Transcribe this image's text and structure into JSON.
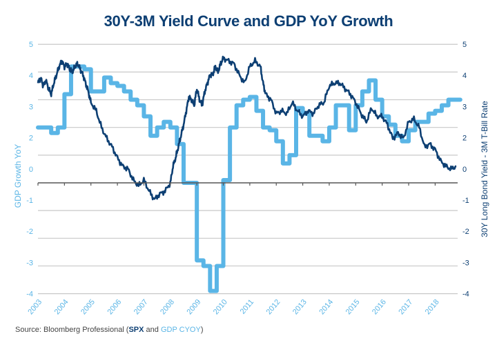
{
  "chart_data": {
    "type": "line",
    "title": "30Y-3M Yield Curve and GDP YoY Growth",
    "xlabel": "",
    "ylabel_left": "GDP Growth YoY",
    "ylabel_right": "30Y Long Bond Yield - 3M T-Bill Rate",
    "x_range": [
      2003,
      2018.85
    ],
    "y_range": [
      -4,
      5
    ],
    "grid": true,
    "legend": "none",
    "x_ticks": [
      "2003",
      "2004",
      "2005",
      "2006",
      "2007",
      "2008",
      "2009",
      "2010",
      "2011",
      "2012",
      "2013",
      "2014",
      "2015",
      "2016",
      "2017",
      "2018"
    ],
    "y_ticks_left": [
      "5",
      "4",
      "3",
      "2",
      "0",
      "-1",
      "-2",
      "-3",
      "-4"
    ],
    "y_ticks_right": [
      "5",
      "4",
      "3",
      "2",
      "0",
      "-1",
      "-2",
      "-3",
      "-4"
    ],
    "colors": {
      "gdp": "#5ab5e6",
      "yield": "#0d3f73",
      "grid": "#c8c8c8",
      "axis": "#555555"
    },
    "series": [
      {
        "name": "GDP Growth YoY",
        "axis": "left",
        "style": "step",
        "x": [
          2003.0,
          2003.5,
          2003.75,
          2004.0,
          2004.25,
          2004.5,
          2004.75,
          2005.0,
          2005.25,
          2005.5,
          2005.75,
          2006.0,
          2006.25,
          2006.5,
          2006.75,
          2007.0,
          2007.25,
          2007.5,
          2007.75,
          2008.0,
          2008.25,
          2008.5,
          2008.75,
          2009.0,
          2009.25,
          2009.5,
          2009.75,
          2010.0,
          2010.25,
          2010.5,
          2010.75,
          2011.0,
          2011.25,
          2011.5,
          2011.75,
          2012.0,
          2012.25,
          2012.5,
          2012.75,
          2013.0,
          2013.25,
          2013.5,
          2013.75,
          2014.0,
          2014.25,
          2014.5,
          2014.75,
          2015.0,
          2015.25,
          2015.5,
          2015.75,
          2016.0,
          2016.25,
          2016.5,
          2016.75,
          2017.0,
          2017.25,
          2017.5,
          2017.75,
          2018.0,
          2018.25,
          2018.5,
          2018.75
        ],
        "values": [
          2.0,
          1.8,
          2.0,
          3.2,
          4.2,
          4.2,
          4.1,
          3.3,
          3.3,
          3.8,
          3.6,
          3.5,
          3.3,
          3.0,
          2.8,
          2.4,
          1.7,
          2.0,
          2.2,
          2.0,
          1.4,
          0.0,
          0.0,
          -2.8,
          -3.0,
          -3.9,
          -3.0,
          0.1,
          2.0,
          2.8,
          3.0,
          3.1,
          2.6,
          2.0,
          1.9,
          1.5,
          0.7,
          1.0,
          2.7,
          2.5,
          1.7,
          1.7,
          1.5,
          2.0,
          2.8,
          2.8,
          1.9,
          2.8,
          3.3,
          3.7,
          3.0,
          2.4,
          2.1,
          1.7,
          1.5,
          1.9,
          2.2,
          2.2,
          2.5,
          2.6,
          2.8,
          3.0,
          3.0
        ]
      },
      {
        "name": "30Y Long Bond Yield - 3M T-Bill Rate",
        "axis": "right",
        "style": "line",
        "x": [
          2003.0,
          2003.1,
          2003.2,
          2003.3,
          2003.4,
          2003.5,
          2003.6,
          2003.7,
          2003.8,
          2003.9,
          2004.0,
          2004.1,
          2004.2,
          2004.3,
          2004.4,
          2004.5,
          2004.6,
          2004.7,
          2004.8,
          2004.9,
          2005.0,
          2005.2,
          2005.4,
          2005.6,
          2005.8,
          2006.0,
          2006.2,
          2006.4,
          2006.6,
          2006.8,
          2007.0,
          2007.2,
          2007.4,
          2007.6,
          2007.8,
          2008.0,
          2008.1,
          2008.2,
          2008.3,
          2008.4,
          2008.5,
          2008.6,
          2008.7,
          2008.8,
          2008.9,
          2009.0,
          2009.1,
          2009.2,
          2009.3,
          2009.4,
          2009.5,
          2009.6,
          2009.7,
          2009.8,
          2009.9,
          2010.0,
          2010.2,
          2010.4,
          2010.6,
          2010.8,
          2011.0,
          2011.2,
          2011.4,
          2011.5,
          2011.6,
          2011.8,
          2012.0,
          2012.2,
          2012.4,
          2012.6,
          2012.8,
          2013.0,
          2013.2,
          2013.4,
          2013.6,
          2013.8,
          2014.0,
          2014.2,
          2014.4,
          2014.6,
          2014.8,
          2015.0,
          2015.2,
          2015.4,
          2015.6,
          2015.8,
          2016.0,
          2016.2,
          2016.4,
          2016.6,
          2016.8,
          2017.0,
          2017.2,
          2017.4,
          2017.6,
          2017.8,
          2018.0,
          2018.2,
          2018.4,
          2018.6,
          2018.8
        ],
        "values": [
          3.6,
          3.8,
          3.5,
          3.7,
          3.4,
          3.2,
          3.6,
          3.9,
          4.2,
          4.4,
          4.2,
          4.3,
          4.1,
          4.0,
          4.2,
          4.3,
          4.1,
          3.9,
          3.6,
          3.3,
          2.9,
          2.6,
          2.0,
          1.6,
          1.3,
          0.9,
          0.6,
          0.5,
          0.1,
          -0.1,
          0.1,
          -0.3,
          -0.6,
          -0.4,
          -0.3,
          0.0,
          0.6,
          0.9,
          1.3,
          1.7,
          2.1,
          2.6,
          3.1,
          3.0,
          2.8,
          3.4,
          3.0,
          2.8,
          3.3,
          3.6,
          3.9,
          3.9,
          4.2,
          4.0,
          4.3,
          4.5,
          4.4,
          4.3,
          3.9,
          3.6,
          4.2,
          4.4,
          4.2,
          3.6,
          3.2,
          3.0,
          2.5,
          2.6,
          2.5,
          2.9,
          2.6,
          2.4,
          2.6,
          2.5,
          2.8,
          2.9,
          3.5,
          3.6,
          3.6,
          3.4,
          3.2,
          2.9,
          2.5,
          2.2,
          2.7,
          2.4,
          2.4,
          2.1,
          1.6,
          1.8,
          1.6,
          2.2,
          2.3,
          2.0,
          1.3,
          1.4,
          1.2,
          0.8,
          0.6,
          0.5,
          0.6
        ]
      }
    ]
  },
  "footer": {
    "source_prefix": "Source: Bloomberg Professional (",
    "spx": "SPX",
    "and": " and ",
    "gdp": "GDP CYOY",
    "source_suffix": ")"
  }
}
